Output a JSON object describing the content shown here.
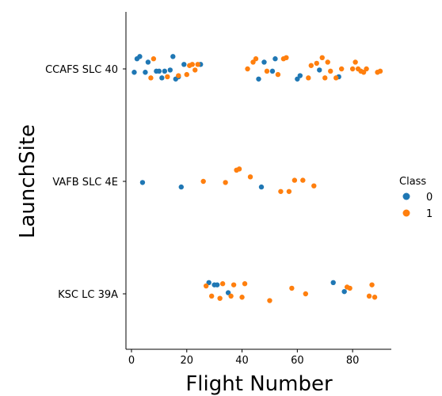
{
  "chart_data": {
    "type": "scatter",
    "title": "",
    "xlabel": "Flight Number",
    "ylabel": "LaunchSite",
    "xlim": [
      -2,
      94
    ],
    "x_ticks": [
      0,
      20,
      40,
      60,
      80
    ],
    "categories": [
      "CCAFS SLC 40",
      "VAFB SLC 4E",
      "KSC LC 39A"
    ],
    "grid": false,
    "legend": {
      "title": "Class",
      "placement": "right",
      "entries": [
        "0",
        "1"
      ]
    },
    "colors": {
      "0": "#1f77b4",
      "1": "#ff7f0e"
    },
    "series": [
      {
        "name": "0",
        "points": [
          {
            "x": 1,
            "y": "CCAFS SLC 40",
            "j": 0.03
          },
          {
            "x": 2,
            "y": "CCAFS SLC 40",
            "j": -0.09
          },
          {
            "x": 3,
            "y": "CCAFS SLC 40",
            "j": -0.11
          },
          {
            "x": 5,
            "y": "CCAFS SLC 40",
            "j": 0.03
          },
          {
            "x": 6,
            "y": "CCAFS SLC 40",
            "j": -0.06
          },
          {
            "x": 9,
            "y": "CCAFS SLC 40",
            "j": 0.02
          },
          {
            "x": 10,
            "y": "CCAFS SLC 40",
            "j": 0.02
          },
          {
            "x": 11,
            "y": "CCAFS SLC 40",
            "j": 0.08
          },
          {
            "x": 12,
            "y": "CCAFS SLC 40",
            "j": 0.02
          },
          {
            "x": 14,
            "y": "CCAFS SLC 40",
            "j": 0.01
          },
          {
            "x": 15,
            "y": "CCAFS SLC 40",
            "j": -0.11
          },
          {
            "x": 16,
            "y": "CCAFS SLC 40",
            "j": 0.09
          },
          {
            "x": 17,
            "y": "CCAFS SLC 40",
            "j": 0.07
          },
          {
            "x": 19,
            "y": "CCAFS SLC 40",
            "j": -0.04
          },
          {
            "x": 25,
            "y": "CCAFS SLC 40",
            "j": -0.04
          },
          {
            "x": 46,
            "y": "CCAFS SLC 40",
            "j": 0.09
          },
          {
            "x": 48,
            "y": "CCAFS SLC 40",
            "j": -0.06
          },
          {
            "x": 51,
            "y": "CCAFS SLC 40",
            "j": 0.02
          },
          {
            "x": 52,
            "y": "CCAFS SLC 40",
            "j": -0.09
          },
          {
            "x": 60,
            "y": "CCAFS SLC 40",
            "j": 0.09
          },
          {
            "x": 61,
            "y": "CCAFS SLC 40",
            "j": 0.06
          },
          {
            "x": 68,
            "y": "CCAFS SLC 40",
            "j": 0.01
          },
          {
            "x": 75,
            "y": "CCAFS SLC 40",
            "j": 0.07
          },
          {
            "x": 4,
            "y": "VAFB SLC 4E",
            "j": 0.01
          },
          {
            "x": 18,
            "y": "VAFB SLC 4E",
            "j": 0.05
          },
          {
            "x": 47,
            "y": "VAFB SLC 4E",
            "j": 0.05
          },
          {
            "x": 28,
            "y": "KSC LC 39A",
            "j": -0.1
          },
          {
            "x": 30,
            "y": "KSC LC 39A",
            "j": -0.08
          },
          {
            "x": 31,
            "y": "KSC LC 39A",
            "j": -0.08
          },
          {
            "x": 35,
            "y": "KSC LC 39A",
            "j": -0.01
          },
          {
            "x": 73,
            "y": "KSC LC 39A",
            "j": -0.1
          },
          {
            "x": 77,
            "y": "KSC LC 39A",
            "j": -0.02
          }
        ]
      },
      {
        "name": "1",
        "points": [
          {
            "x": 7,
            "y": "CCAFS SLC 40",
            "j": 0.08
          },
          {
            "x": 8,
            "y": "CCAFS SLC 40",
            "j": -0.09
          },
          {
            "x": 13,
            "y": "CCAFS SLC 40",
            "j": 0.07
          },
          {
            "x": 17,
            "y": "CCAFS SLC 40",
            "j": 0.06
          },
          {
            "x": 20,
            "y": "CCAFS SLC 40",
            "j": 0.05
          },
          {
            "x": 21,
            "y": "CCAFS SLC 40",
            "j": -0.03
          },
          {
            "x": 22,
            "y": "CCAFS SLC 40",
            "j": -0.04
          },
          {
            "x": 23,
            "y": "CCAFS SLC 40",
            "j": 0.01
          },
          {
            "x": 24,
            "y": "CCAFS SLC 40",
            "j": -0.04
          },
          {
            "x": 42,
            "y": "CCAFS SLC 40",
            "j": 0.0
          },
          {
            "x": 44,
            "y": "CCAFS SLC 40",
            "j": -0.06
          },
          {
            "x": 45,
            "y": "CCAFS SLC 40",
            "j": -0.09
          },
          {
            "x": 49,
            "y": "CCAFS SLC 40",
            "j": 0.02
          },
          {
            "x": 53,
            "y": "CCAFS SLC 40",
            "j": 0.05
          },
          {
            "x": 55,
            "y": "CCAFS SLC 40",
            "j": -0.09
          },
          {
            "x": 56,
            "y": "CCAFS SLC 40",
            "j": -0.1
          },
          {
            "x": 64,
            "y": "CCAFS SLC 40",
            "j": 0.08
          },
          {
            "x": 65,
            "y": "CCAFS SLC 40",
            "j": -0.03
          },
          {
            "x": 67,
            "y": "CCAFS SLC 40",
            "j": -0.05
          },
          {
            "x": 69,
            "y": "CCAFS SLC 40",
            "j": -0.1
          },
          {
            "x": 70,
            "y": "CCAFS SLC 40",
            "j": 0.08
          },
          {
            "x": 71,
            "y": "CCAFS SLC 40",
            "j": -0.06
          },
          {
            "x": 72,
            "y": "CCAFS SLC 40",
            "j": 0.02
          },
          {
            "x": 74,
            "y": "CCAFS SLC 40",
            "j": 0.08
          },
          {
            "x": 76,
            "y": "CCAFS SLC 40",
            "j": 0.0
          },
          {
            "x": 80,
            "y": "CCAFS SLC 40",
            "j": 0.0
          },
          {
            "x": 81,
            "y": "CCAFS SLC 40",
            "j": -0.06
          },
          {
            "x": 82,
            "y": "CCAFS SLC 40",
            "j": 0.0
          },
          {
            "x": 83,
            "y": "CCAFS SLC 40",
            "j": 0.02
          },
          {
            "x": 84,
            "y": "CCAFS SLC 40",
            "j": 0.03
          },
          {
            "x": 85,
            "y": "CCAFS SLC 40",
            "j": 0.0
          },
          {
            "x": 89,
            "y": "CCAFS SLC 40",
            "j": 0.03
          },
          {
            "x": 90,
            "y": "CCAFS SLC 40",
            "j": 0.02
          },
          {
            "x": 26,
            "y": "VAFB SLC 4E",
            "j": 0.0
          },
          {
            "x": 34,
            "y": "VAFB SLC 4E",
            "j": 0.01
          },
          {
            "x": 38,
            "y": "VAFB SLC 4E",
            "j": -0.1
          },
          {
            "x": 39,
            "y": "VAFB SLC 4E",
            "j": -0.11
          },
          {
            "x": 43,
            "y": "VAFB SLC 4E",
            "j": -0.04
          },
          {
            "x": 54,
            "y": "VAFB SLC 4E",
            "j": 0.09
          },
          {
            "x": 57,
            "y": "VAFB SLC 4E",
            "j": 0.09
          },
          {
            "x": 59,
            "y": "VAFB SLC 4E",
            "j": -0.01
          },
          {
            "x": 62,
            "y": "VAFB SLC 4E",
            "j": -0.01
          },
          {
            "x": 66,
            "y": "VAFB SLC 4E",
            "j": 0.04
          },
          {
            "x": 27,
            "y": "KSC LC 39A",
            "j": -0.07
          },
          {
            "x": 29,
            "y": "KSC LC 39A",
            "j": 0.02
          },
          {
            "x": 32,
            "y": "KSC LC 39A",
            "j": 0.04
          },
          {
            "x": 33,
            "y": "KSC LC 39A",
            "j": -0.09
          },
          {
            "x": 36,
            "y": "KSC LC 39A",
            "j": 0.02
          },
          {
            "x": 37,
            "y": "KSC LC 39A",
            "j": -0.08
          },
          {
            "x": 40,
            "y": "KSC LC 39A",
            "j": 0.03
          },
          {
            "x": 41,
            "y": "KSC LC 39A",
            "j": -0.09
          },
          {
            "x": 50,
            "y": "KSC LC 39A",
            "j": 0.06
          },
          {
            "x": 58,
            "y": "KSC LC 39A",
            "j": -0.05
          },
          {
            "x": 63,
            "y": "KSC LC 39A",
            "j": 0.0
          },
          {
            "x": 78,
            "y": "KSC LC 39A",
            "j": -0.06
          },
          {
            "x": 79,
            "y": "KSC LC 39A",
            "j": -0.05
          },
          {
            "x": 86,
            "y": "KSC LC 39A",
            "j": 0.02
          },
          {
            "x": 87,
            "y": "KSC LC 39A",
            "j": -0.08
          },
          {
            "x": 88,
            "y": "KSC LC 39A",
            "j": 0.03
          }
        ]
      }
    ]
  }
}
